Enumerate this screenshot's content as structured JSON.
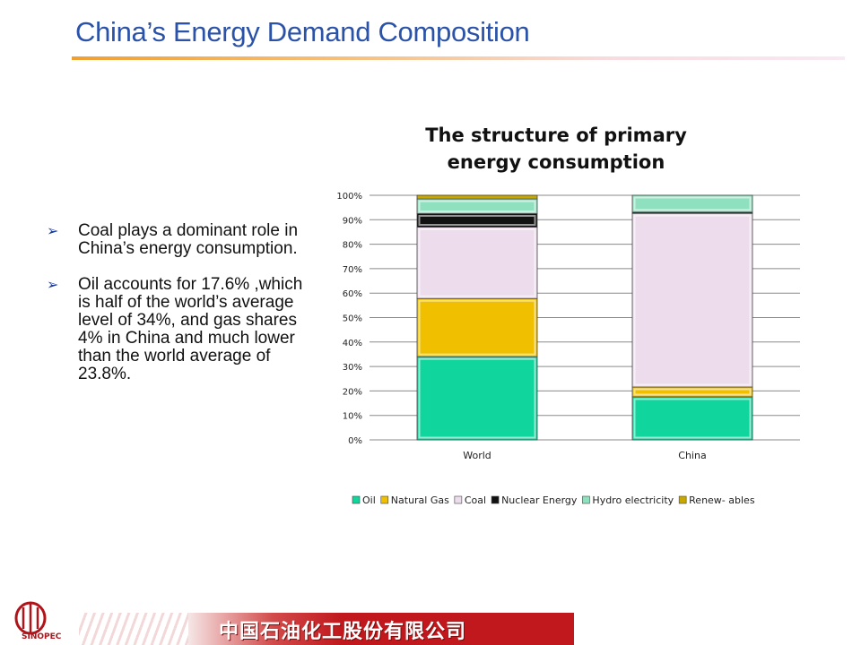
{
  "slide": {
    "title": "China’s Energy Demand Composition",
    "bullets": [
      "Coal plays a dominant role in China’s energy consumption.",
      "Oil accounts for 17.6% ,which is half of the world’s average level of 34%, and gas shares 4% in China and much lower than the world average of 23.8%."
    ],
    "footer_text": "中国石油化工股份有限公司",
    "logo_caption": "SINOPEC"
  },
  "chart_data": {
    "type": "bar",
    "stacked": true,
    "title_lines": [
      "The structure of primary",
      "energy consumption"
    ],
    "categories": [
      "World",
      "China"
    ],
    "y_ticks": [
      "0%",
      "10%",
      "20%",
      "30%",
      "40%",
      "50%",
      "60%",
      "70%",
      "80%",
      "90%",
      "100%"
    ],
    "ylim": [
      0,
      100
    ],
    "grid": true,
    "legend_position": "bottom",
    "series": [
      {
        "name": "Oil",
        "color": "#10d59d",
        "values": [
          34,
          17.6
        ]
      },
      {
        "name": "Natural Gas",
        "color": "#f0c000",
        "values": [
          23.8,
          4
        ]
      },
      {
        "name": "Coal",
        "color": "#ecdcec",
        "values": [
          29.2,
          71
        ]
      },
      {
        "name": "Nuclear Energy",
        "color": "#111111",
        "values": [
          5.5,
          0.5
        ]
      },
      {
        "name": "Hydro electricity",
        "color": "#8fe0bf",
        "values": [
          6,
          6.9
        ]
      },
      {
        "name": "Renew- ables",
        "color": "#c8a800",
        "values": [
          1.5,
          0
        ]
      }
    ]
  }
}
